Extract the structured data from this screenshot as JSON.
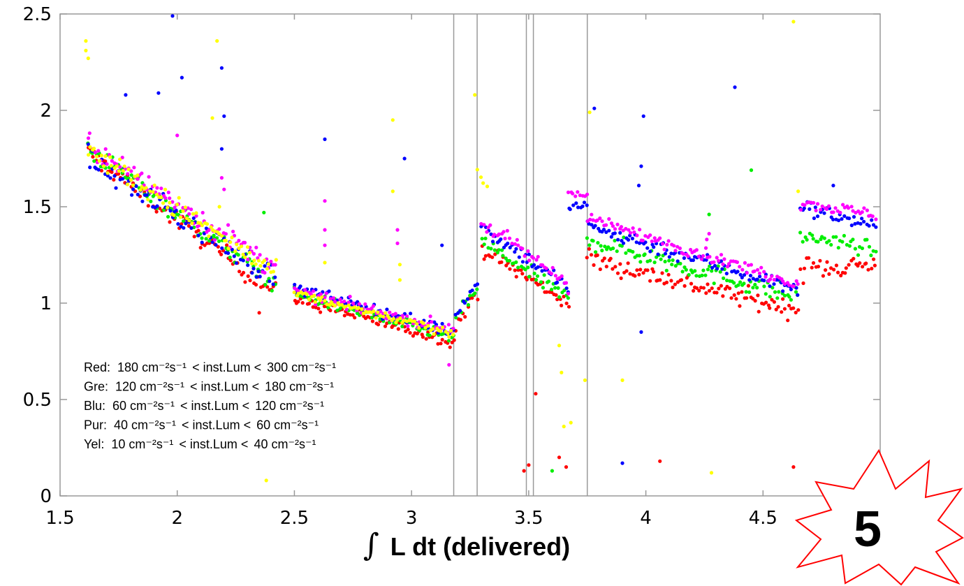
{
  "chart_data": {
    "type": "scatter",
    "title": "",
    "xlabel": "L dt  (delivered)",
    "xlabel_symbol": "∫",
    "ylabel": "",
    "xlim": [
      1.5,
      5.0
    ],
    "ylim": [
      0,
      2.5
    ],
    "x_ticks": [
      1.5,
      2,
      2.5,
      3,
      3.5,
      4,
      4.5
    ],
    "x_tick_labels": [
      "1.5",
      "2",
      "2.5",
      "3",
      "3.5",
      "4",
      "4.5"
    ],
    "y_ticks": [
      0,
      0.5,
      1,
      1.5,
      2,
      2.5
    ],
    "y_tick_labels": [
      "0",
      "0.5",
      "1",
      "1.5",
      "2",
      "2.5"
    ],
    "grid": false,
    "vertical_lines": [
      3.18,
      3.28,
      3.49,
      3.52,
      3.75
    ],
    "legend": {
      "placement": "bottom-left",
      "entries": [
        {
          "prefix": "Red:",
          "low": "180",
          "high": "300",
          "unit": "cm⁻²s⁻¹",
          "mid": "<  inst.Lum <"
        },
        {
          "prefix": "Gre:",
          "low": "120",
          "high": "180",
          "unit": "cm⁻²s⁻¹",
          "mid": "<  inst.Lum <"
        },
        {
          "prefix": "Blu:",
          "low": "60",
          "high": "120",
          "unit": "cm⁻²s⁻¹",
          "mid": "<  inst.Lum <"
        },
        {
          "prefix": "Pur:",
          "low": "40",
          "high": "60",
          "unit": "cm⁻²s⁻¹",
          "mid": "<  inst.Lum <"
        },
        {
          "prefix": "Yel:",
          "low": "10",
          "high": "40",
          "unit": "cm⁻²s⁻¹",
          "mid": "<  inst.Lum <"
        }
      ]
    },
    "series": [
      {
        "color": "#ff0000",
        "segments": [
          {
            "x0": 1.62,
            "x1": 2.42,
            "y0": 1.78,
            "y1": 1.05,
            "noise": 0.05
          },
          {
            "x0": 2.5,
            "x1": 3.18,
            "y0": 1.02,
            "y1": 0.8,
            "noise": 0.03
          },
          {
            "x0": 3.19,
            "x1": 3.28,
            "y0": 0.88,
            "y1": 1.05,
            "noise": 0.03
          },
          {
            "x0": 3.3,
            "x1": 3.67,
            "y0": 1.28,
            "y1": 1.0,
            "noise": 0.04
          },
          {
            "x0": 3.75,
            "x1": 4.65,
            "y0": 1.23,
            "y1": 0.96,
            "noise": 0.05
          },
          {
            "x0": 4.66,
            "x1": 4.98,
            "y0": 1.18,
            "y1": 1.2,
            "noise": 0.06
          }
        ],
        "outliers": [
          [
            3.48,
            0.13
          ],
          [
            3.5,
            0.16
          ],
          [
            3.53,
            0.53
          ],
          [
            3.63,
            0.2
          ],
          [
            3.66,
            0.15
          ],
          [
            4.06,
            0.18
          ],
          [
            4.63,
            0.15
          ],
          [
            2.35,
            0.95
          ]
        ]
      },
      {
        "color": "#00ee00",
        "segments": [
          {
            "x0": 1.62,
            "x1": 2.42,
            "y0": 1.8,
            "y1": 1.1,
            "noise": 0.05
          },
          {
            "x0": 2.5,
            "x1": 3.18,
            "y0": 1.05,
            "y1": 0.82,
            "noise": 0.03
          },
          {
            "x0": 3.19,
            "x1": 3.28,
            "y0": 0.92,
            "y1": 1.08,
            "noise": 0.03
          },
          {
            "x0": 3.3,
            "x1": 3.67,
            "y0": 1.32,
            "y1": 1.02,
            "noise": 0.04
          },
          {
            "x0": 3.75,
            "x1": 4.65,
            "y0": 1.33,
            "y1": 1.03,
            "noise": 0.05
          },
          {
            "x0": 4.66,
            "x1": 4.98,
            "y0": 1.35,
            "y1": 1.28,
            "noise": 0.04
          }
        ],
        "outliers": [
          [
            2.37,
            1.47
          ],
          [
            3.6,
            0.13
          ],
          [
            4.45,
            1.69
          ],
          [
            4.27,
            1.46
          ]
        ]
      },
      {
        "color": "#0000ff",
        "segments": [
          {
            "x0": 1.62,
            "x1": 2.42,
            "y0": 1.75,
            "y1": 1.13,
            "noise": 0.06
          },
          {
            "x0": 2.5,
            "x1": 3.18,
            "y0": 1.08,
            "y1": 0.85,
            "noise": 0.03
          },
          {
            "x0": 3.19,
            "x1": 3.28,
            "y0": 0.95,
            "y1": 1.1,
            "noise": 0.03
          },
          {
            "x0": 3.3,
            "x1": 3.67,
            "y0": 1.4,
            "y1": 1.08,
            "noise": 0.04
          },
          {
            "x0": 3.67,
            "x1": 3.75,
            "y0": 1.48,
            "y1": 1.52,
            "noise": 0.03
          },
          {
            "x0": 3.75,
            "x1": 4.65,
            "y0": 1.4,
            "y1": 1.07,
            "noise": 0.04
          },
          {
            "x0": 4.66,
            "x1": 4.98,
            "y0": 1.5,
            "y1": 1.4,
            "noise": 0.04
          }
        ],
        "outliers": [
          [
            1.98,
            2.49
          ],
          [
            2.02,
            2.17
          ],
          [
            2.19,
            2.22
          ],
          [
            2.2,
            1.97
          ],
          [
            2.19,
            1.8
          ],
          [
            2.63,
            1.85
          ],
          [
            2.97,
            1.75
          ],
          [
            1.92,
            2.09
          ],
          [
            1.78,
            2.08
          ],
          [
            3.78,
            2.01
          ],
          [
            3.99,
            1.97
          ],
          [
            3.98,
            1.71
          ],
          [
            3.97,
            1.61
          ],
          [
            4.38,
            2.12
          ],
          [
            4.8,
            1.61
          ],
          [
            3.98,
            0.85
          ],
          [
            3.9,
            0.17
          ],
          [
            3.13,
            1.3
          ]
        ]
      },
      {
        "color": "#ff00ff",
        "segments": [
          {
            "x0": 1.62,
            "x1": 2.42,
            "y0": 1.82,
            "y1": 1.18,
            "noise": 0.06
          },
          {
            "x0": 2.5,
            "x1": 3.18,
            "y0": 1.06,
            "y1": 0.86,
            "noise": 0.03
          },
          {
            "x0": 3.3,
            "x1": 3.67,
            "y0": 1.42,
            "y1": 1.1,
            "noise": 0.04
          },
          {
            "x0": 3.67,
            "x1": 3.75,
            "y0": 1.58,
            "y1": 1.55,
            "noise": 0.02
          },
          {
            "x0": 3.75,
            "x1": 4.65,
            "y0": 1.44,
            "y1": 1.1,
            "noise": 0.03
          },
          {
            "x0": 4.66,
            "x1": 4.98,
            "y0": 1.52,
            "y1": 1.46,
            "noise": 0.03
          }
        ],
        "outliers": [
          [
            2.19,
            1.65
          ],
          [
            2.2,
            1.59
          ],
          [
            2.63,
            1.53
          ],
          [
            2.63,
            1.38
          ],
          [
            2.63,
            1.3
          ],
          [
            2.94,
            1.38
          ],
          [
            2.94,
            1.31
          ],
          [
            2.0,
            1.87
          ],
          [
            3.16,
            0.68
          ],
          [
            4.27,
            1.36
          ],
          [
            4.26,
            1.33
          ]
        ]
      },
      {
        "color": "#ffff00",
        "segments": [
          {
            "x0": 1.62,
            "x1": 2.42,
            "y0": 1.8,
            "y1": 1.15,
            "noise": 0.06
          },
          {
            "x0": 2.5,
            "x1": 3.18,
            "y0": 1.05,
            "y1": 0.84,
            "noise": 0.02
          },
          {
            "x0": 3.28,
            "x1": 3.32,
            "y0": 1.72,
            "y1": 1.6,
            "noise": 0.05
          }
        ],
        "outliers": [
          [
            1.61,
            2.36
          ],
          [
            1.61,
            2.31
          ],
          [
            1.62,
            2.27
          ],
          [
            2.17,
            2.36
          ],
          [
            2.15,
            1.96
          ],
          [
            2.18,
            1.5
          ],
          [
            2.92,
            1.95
          ],
          [
            2.92,
            1.58
          ],
          [
            2.95,
            1.2
          ],
          [
            2.95,
            1.12
          ],
          [
            2.63,
            1.21
          ],
          [
            3.27,
            2.08
          ],
          [
            3.76,
            1.99
          ],
          [
            3.63,
            0.78
          ],
          [
            3.64,
            0.64
          ],
          [
            3.68,
            0.38
          ],
          [
            3.65,
            0.36
          ],
          [
            3.74,
            0.6
          ],
          [
            3.9,
            0.6
          ],
          [
            4.63,
            2.46
          ],
          [
            4.65,
            1.58
          ],
          [
            4.28,
            0.12
          ],
          [
            2.38,
            0.08
          ]
        ]
      }
    ]
  },
  "badge": {
    "number": "5"
  }
}
